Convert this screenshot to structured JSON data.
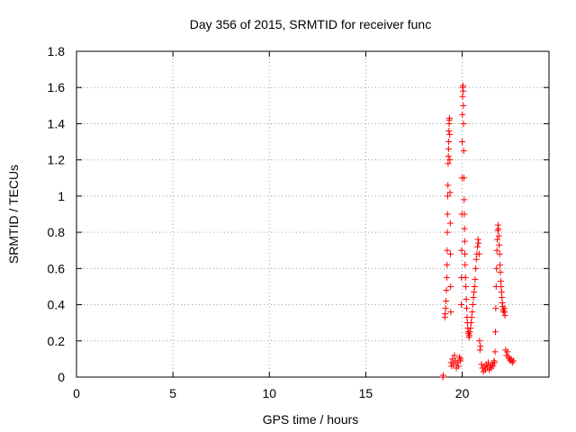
{
  "chart_data": {
    "type": "scatter",
    "title": "Day 356 of 2015, SRMTID for receiver func",
    "xlabel": "GPS time / hours",
    "ylabel": "SRMTID / TECUs",
    "xlim": [
      0,
      24.5
    ],
    "ylim": [
      0,
      1.8
    ],
    "xticks": [
      0,
      5,
      10,
      15,
      20
    ],
    "yticks": [
      0,
      0.2,
      0.4,
      0.6,
      0.8,
      1,
      1.2,
      1.4,
      1.6,
      1.8
    ],
    "xtick_labels": [
      "0",
      "5",
      "10",
      "15",
      "20"
    ],
    "ytick_labels": [
      "0",
      "0.2",
      "0.4",
      "0.6",
      "0.8",
      "1",
      "1.2",
      "1.4",
      "1.6",
      "1.8"
    ],
    "grid": true,
    "marker": "+",
    "color": "#ff0000",
    "series": [
      {
        "name": "SRMTID",
        "points": [
          [
            19.0,
            0.0
          ],
          [
            19.02,
            0.01
          ],
          [
            19.1,
            0.33
          ],
          [
            19.12,
            0.35
          ],
          [
            19.14,
            0.38
          ],
          [
            19.16,
            0.42
          ],
          [
            19.18,
            0.48
          ],
          [
            19.2,
            0.55
          ],
          [
            19.21,
            0.62
          ],
          [
            19.22,
            0.7
          ],
          [
            19.23,
            0.8
          ],
          [
            19.24,
            0.9
          ],
          [
            19.25,
            1.0
          ],
          [
            19.26,
            1.06
          ],
          [
            19.27,
            1.18
          ],
          [
            19.28,
            1.22
          ],
          [
            19.29,
            1.26
          ],
          [
            19.3,
            1.3
          ],
          [
            19.31,
            1.36
          ],
          [
            19.32,
            1.4
          ],
          [
            19.33,
            1.42
          ],
          [
            19.34,
            1.43
          ],
          [
            19.35,
            1.34
          ],
          [
            19.36,
            1.2
          ],
          [
            19.37,
            1.02
          ],
          [
            19.38,
            0.85
          ],
          [
            19.39,
            0.68
          ],
          [
            19.4,
            0.5
          ],
          [
            19.41,
            0.36
          ],
          [
            19.42,
            0.08
          ],
          [
            19.45,
            0.06
          ],
          [
            19.5,
            0.1
          ],
          [
            19.55,
            0.07
          ],
          [
            19.6,
            0.12
          ],
          [
            19.65,
            0.09
          ],
          [
            19.7,
            0.05
          ],
          [
            19.75,
            0.08
          ],
          [
            19.8,
            0.06
          ],
          [
            19.85,
            0.11
          ],
          [
            19.9,
            0.09
          ],
          [
            19.92,
            0.1
          ],
          [
            19.95,
            0.4
          ],
          [
            19.96,
            0.55
          ],
          [
            19.97,
            0.7
          ],
          [
            19.98,
            0.9
          ],
          [
            19.99,
            1.1
          ],
          [
            20.0,
            1.3
          ],
          [
            20.01,
            1.45
          ],
          [
            20.02,
            1.55
          ],
          [
            20.03,
            1.6
          ],
          [
            20.04,
            1.61
          ],
          [
            20.05,
            1.58
          ],
          [
            20.06,
            1.5
          ],
          [
            20.07,
            1.4
          ],
          [
            20.08,
            1.25
          ],
          [
            20.09,
            1.1
          ],
          [
            20.1,
            0.98
          ],
          [
            20.11,
            0.9
          ],
          [
            20.12,
            0.82
          ],
          [
            20.13,
            0.75
          ],
          [
            20.14,
            0.68
          ],
          [
            20.15,
            0.62
          ],
          [
            20.17,
            0.55
          ],
          [
            20.19,
            0.5
          ],
          [
            20.21,
            0.43
          ],
          [
            20.23,
            0.38
          ],
          [
            20.25,
            0.33
          ],
          [
            20.27,
            0.3
          ],
          [
            20.29,
            0.27
          ],
          [
            20.31,
            0.25
          ],
          [
            20.33,
            0.24
          ],
          [
            20.35,
            0.22
          ],
          [
            20.37,
            0.23
          ],
          [
            20.4,
            0.25
          ],
          [
            20.43,
            0.27
          ],
          [
            20.46,
            0.3
          ],
          [
            20.49,
            0.33
          ],
          [
            20.52,
            0.36
          ],
          [
            20.55,
            0.4
          ],
          [
            20.58,
            0.44
          ],
          [
            20.61,
            0.47
          ],
          [
            20.64,
            0.5
          ],
          [
            20.67,
            0.54
          ],
          [
            20.7,
            0.6
          ],
          [
            20.73,
            0.65
          ],
          [
            20.76,
            0.68
          ],
          [
            20.79,
            0.72
          ],
          [
            20.82,
            0.76
          ],
          [
            20.85,
            0.74
          ],
          [
            20.88,
            0.68
          ],
          [
            20.9,
            0.2
          ],
          [
            20.92,
            0.15
          ],
          [
            20.95,
            0.17
          ],
          [
            21.0,
            0.07
          ],
          [
            21.05,
            0.05
          ],
          [
            21.1,
            0.03
          ],
          [
            21.15,
            0.06
          ],
          [
            21.2,
            0.04
          ],
          [
            21.25,
            0.07
          ],
          [
            21.3,
            0.05
          ],
          [
            21.35,
            0.08
          ],
          [
            21.4,
            0.04
          ],
          [
            21.45,
            0.06
          ],
          [
            21.5,
            0.05
          ],
          [
            21.55,
            0.07
          ],
          [
            21.6,
            0.06
          ],
          [
            21.65,
            0.09
          ],
          [
            21.68,
            0.08
          ],
          [
            21.7,
            0.14
          ],
          [
            21.72,
            0.25
          ],
          [
            21.74,
            0.38
          ],
          [
            21.76,
            0.5
          ],
          [
            21.78,
            0.6
          ],
          [
            21.8,
            0.7
          ],
          [
            21.82,
            0.76
          ],
          [
            21.84,
            0.81
          ],
          [
            21.86,
            0.84
          ],
          [
            21.88,
            0.82
          ],
          [
            21.9,
            0.78
          ],
          [
            21.92,
            0.73
          ],
          [
            21.94,
            0.68
          ],
          [
            21.96,
            0.62
          ],
          [
            21.98,
            0.58
          ],
          [
            22.0,
            0.53
          ],
          [
            22.02,
            0.5
          ],
          [
            22.04,
            0.47
          ],
          [
            22.06,
            0.44
          ],
          [
            22.08,
            0.41
          ],
          [
            22.1,
            0.39
          ],
          [
            22.12,
            0.37
          ],
          [
            22.15,
            0.36
          ],
          [
            22.18,
            0.38
          ],
          [
            22.2,
            0.36
          ],
          [
            22.22,
            0.34
          ],
          [
            22.25,
            0.15
          ],
          [
            22.3,
            0.12
          ],
          [
            22.35,
            0.14
          ],
          [
            22.4,
            0.11
          ],
          [
            22.45,
            0.1
          ],
          [
            22.5,
            0.09
          ],
          [
            22.55,
            0.1
          ],
          [
            22.6,
            0.08
          ],
          [
            22.65,
            0.09
          ]
        ]
      }
    ]
  }
}
